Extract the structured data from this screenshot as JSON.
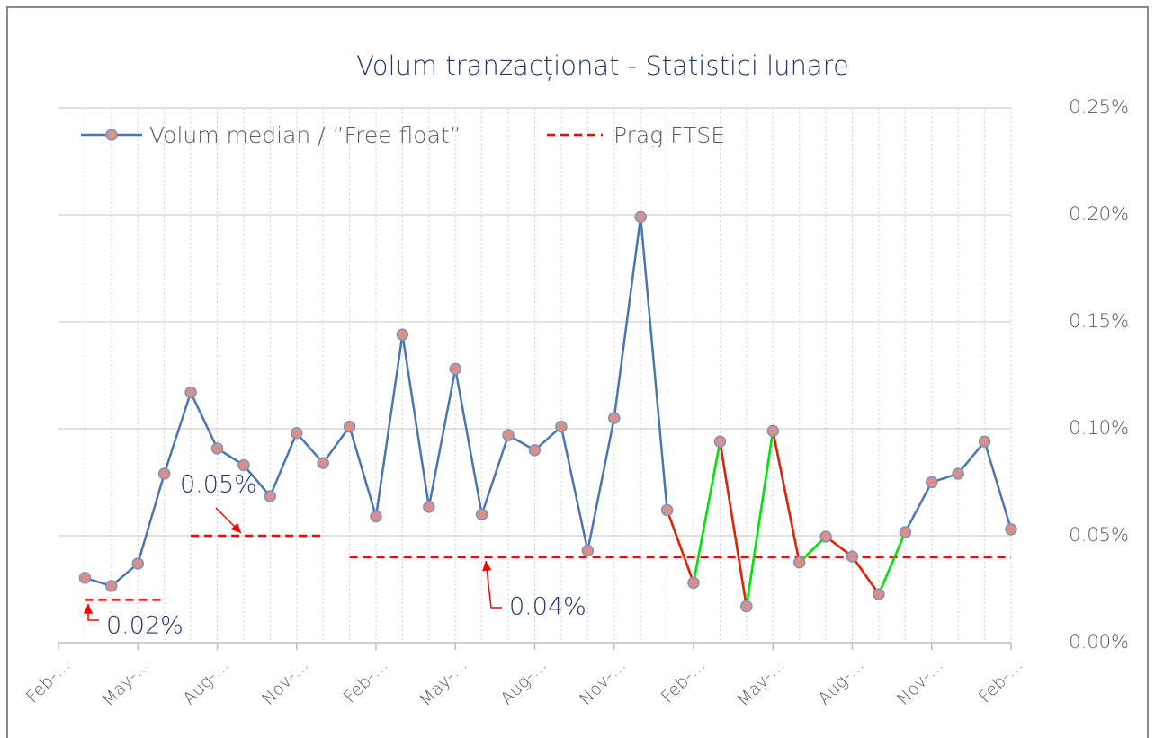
{
  "chart_data": {
    "type": "line",
    "title": "Volum tranzacționat - Statistici lunare",
    "categories": [
      "Feb-…",
      null,
      null,
      "May-…",
      null,
      null,
      "Aug-…",
      null,
      null,
      "Nov-…",
      null,
      null,
      "Feb-…",
      null,
      null,
      "May-…",
      null,
      null,
      "Aug-…",
      null,
      null,
      "Nov-…",
      null,
      null,
      "Feb-…",
      null,
      null,
      "May-…",
      null,
      null,
      "Aug-…",
      null,
      null,
      "Nov-…",
      null,
      null,
      "Feb-…"
    ],
    "series": [
      {
        "name": "Volum median / ”Free float”",
        "color": "#4a76b0",
        "marker_color": "#d9908a",
        "values": [
          null,
          0.0303,
          0.0265,
          0.037,
          0.079,
          0.117,
          0.0908,
          0.083,
          0.0685,
          0.098,
          0.084,
          0.101,
          0.059,
          0.144,
          0.0635,
          0.128,
          0.06,
          0.097,
          0.09,
          0.101,
          0.043,
          0.105,
          0.199,
          0.062,
          0.028,
          0.094,
          0.017,
          0.099,
          0.0375,
          0.0496,
          0.0403,
          0.0227,
          0.0517,
          0.075,
          0.079,
          0.094,
          0.053
        ]
      }
    ],
    "highlight": {
      "up_color": "#00e800",
      "down_color": "#e82000",
      "from": 23,
      "to": 32
    },
    "threshold_name": "Prag FTSE",
    "threshold_color": "#ff0000",
    "thresholds": [
      {
        "value": 0.02,
        "label": "0.02%",
        "from": 1,
        "to": 4
      },
      {
        "value": 0.05,
        "label": "0.05%",
        "from": 5,
        "to": 10
      },
      {
        "value": 0.04,
        "label": "0.04%",
        "from": 11,
        "to": 36
      }
    ],
    "ylim": [
      0,
      0.25
    ],
    "yticks": [
      {
        "value": 0,
        "label": "0.00%"
      },
      {
        "value": 0.05,
        "label": "0.05%"
      },
      {
        "value": 0.1,
        "label": "0.10%"
      },
      {
        "value": 0.15,
        "label": "0.15%"
      },
      {
        "value": 0.2,
        "label": "0.20%"
      },
      {
        "value": 0.25,
        "label": "0.25%"
      }
    ],
    "grid": true
  }
}
